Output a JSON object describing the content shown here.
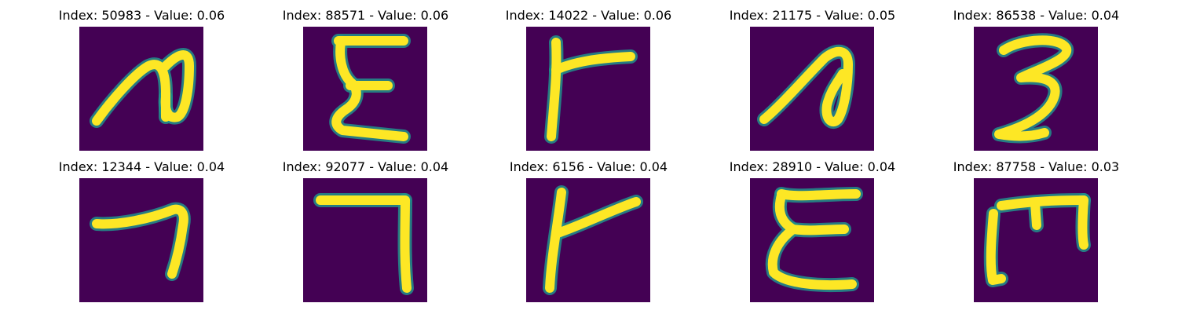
{
  "colors": {
    "background": "#440154",
    "mid": "#21918c",
    "stroke": "#fde725"
  },
  "grid": {
    "rows": [
      [
        {
          "title": "Index: 50983 - Value: 0.06",
          "glyph": "n-shape"
        },
        {
          "title": "Index: 88571 - Value: 0.06",
          "glyph": "sigma-shape"
        },
        {
          "title": "Index: 14022 - Value: 0.06",
          "glyph": "gamma-shape"
        },
        {
          "title": "Index: 21175 - Value: 0.05",
          "glyph": "n-loop-shape"
        },
        {
          "title": "Index: 86538 - Value: 0.04",
          "glyph": "three-shape"
        }
      ],
      [
        {
          "title": "Index: 12344 - Value: 0.04",
          "glyph": "seven-shape"
        },
        {
          "title": "Index: 92077 - Value: 0.04",
          "glyph": "corner-shape"
        },
        {
          "title": "Index: 6156 - Value: 0.04",
          "glyph": "gamma-shape-2"
        },
        {
          "title": "Index: 28910 - Value: 0.04",
          "glyph": "epsilon-shape"
        },
        {
          "title": "Index: 87758 - Value: 0.03",
          "glyph": "m-shape"
        }
      ]
    ]
  }
}
